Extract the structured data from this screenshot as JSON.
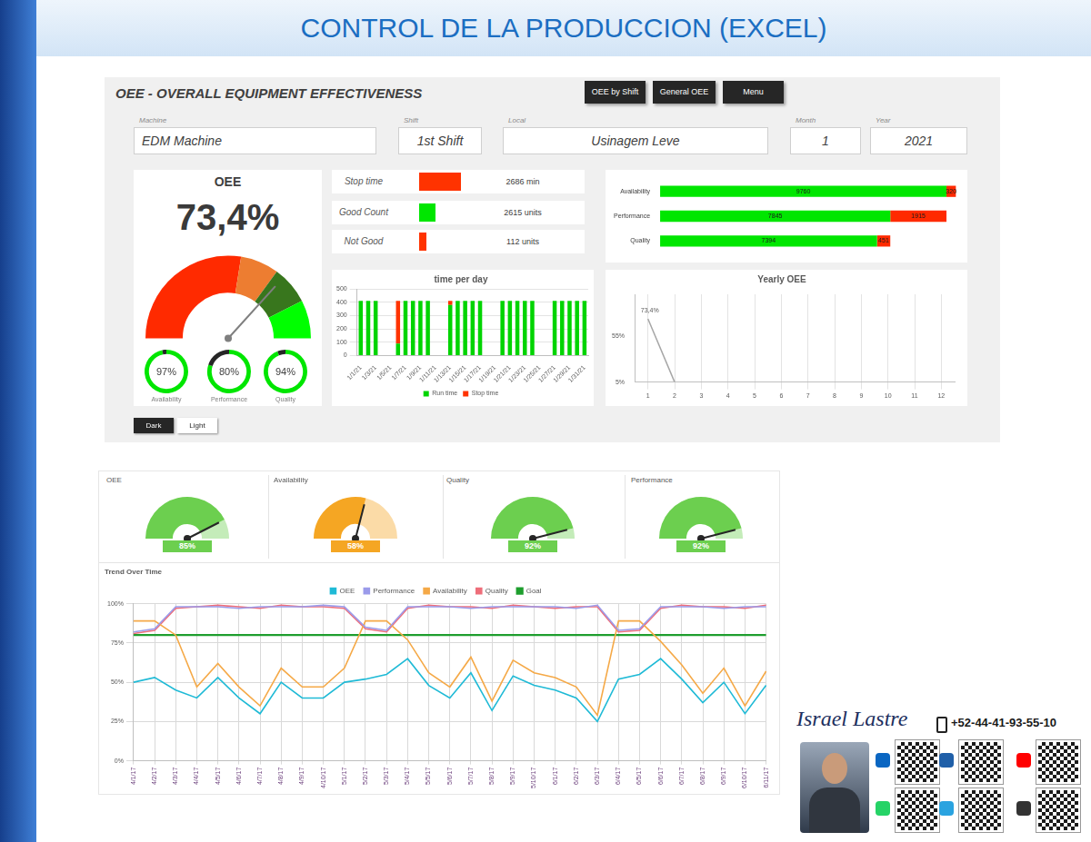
{
  "slide_title": "CONTROL DE LA PRODUCCION (EXCEL)",
  "dashboard1": {
    "title": "OEE - OVERALL EQUIPMENT EFFECTIVENESS",
    "buttons": [
      "OEE by Shift",
      "General OEE",
      "Menu"
    ],
    "fields": [
      {
        "label": "Machine",
        "value": "EDM Machine"
      },
      {
        "label": "Shift",
        "value": "1st Shift"
      },
      {
        "label": "Local",
        "value": "Usinagem Leve"
      },
      {
        "label": "Month",
        "value": "1"
      },
      {
        "label": "Year",
        "value": "2021"
      }
    ],
    "oee": {
      "title": "OEE",
      "value": 73.4,
      "value_label": "73,4%",
      "range": [
        0,
        100
      ],
      "bands": [
        55,
        15,
        15,
        15
      ],
      "band_colors": [
        "#ff2a00",
        "#ed7d31",
        "#38761d",
        "#00ff00"
      ],
      "components": [
        {
          "name": "Availability",
          "value": 97,
          "value_label": "97%"
        },
        {
          "name": "Performance",
          "value": 80,
          "value_label": "80%"
        },
        {
          "name": "Quality",
          "value": 94,
          "value_label": "94%"
        }
      ]
    },
    "kpis": [
      {
        "label": "Stop time",
        "value": 2686,
        "value_label": "2686 min",
        "color": "#ff3300"
      },
      {
        "label": "Good Count",
        "value": 2615,
        "value_label": "2615 units",
        "color": "#00e600"
      },
      {
        "label": "Not Good",
        "value": 112,
        "value_label": "112 units",
        "color": "#ff3300"
      }
    ],
    "theme_buttons": [
      "Dark",
      "Light"
    ]
  },
  "chart_data": [
    {
      "type": "bar",
      "orientation": "horizontal",
      "stacked": true,
      "categories": [
        "Availability",
        "Performance",
        "Quality"
      ],
      "series": [
        {
          "color": "#00e600",
          "values": [
            9760,
            7845,
            7394
          ]
        },
        {
          "color": "#ff2a00",
          "values": [
            320,
            1915,
            451
          ]
        }
      ],
      "xlim": [
        0,
        10100
      ],
      "data_labels": true,
      "tick_labels": "y",
      "grid": false
    },
    {
      "type": "bar",
      "stacked": true,
      "title": "time per day",
      "categories": [
        "1/1/21",
        null,
        "1/3/21",
        null,
        "1/5/21",
        null,
        "1/7/21",
        null,
        "1/9/21",
        null,
        "1/11/21",
        null,
        "1/13/21",
        null,
        "1/15/21",
        null,
        "1/17/21",
        null,
        "1/19/21",
        null,
        "1/21/21",
        null,
        "1/23/21",
        null,
        "1/25/21",
        null,
        "1/27/21",
        null,
        "1/29/21",
        null,
        "1/31/21"
      ],
      "series": [
        {
          "name": "Run time",
          "color": "#00d400",
          "values": [
            410,
            410,
            410,
            null,
            null,
            90,
            410,
            410,
            410,
            410,
            null,
            null,
            380,
            410,
            410,
            410,
            410,
            null,
            null,
            410,
            410,
            410,
            410,
            410,
            null,
            null,
            410,
            410,
            410,
            410,
            410
          ]
        },
        {
          "name": "Stop time",
          "color": "#ff3300",
          "values": [
            0,
            0,
            0,
            null,
            null,
            320,
            0,
            0,
            0,
            0,
            null,
            null,
            30,
            0,
            0,
            0,
            0,
            null,
            null,
            0,
            0,
            0,
            0,
            0,
            null,
            null,
            0,
            0,
            0,
            0,
            0
          ]
        }
      ],
      "ylim": [
        0,
        500
      ],
      "yticks": [
        0,
        100,
        200,
        300,
        400,
        500
      ],
      "grid": true,
      "legend": "bottom"
    },
    {
      "type": "line",
      "title": "Yearly OEE",
      "x": [
        1,
        2,
        3,
        4,
        5,
        6,
        7,
        8,
        9,
        10,
        11,
        12
      ],
      "series": [
        {
          "color": "#a6a6a6",
          "values": [
            73.4,
            5,
            null,
            null,
            null,
            null,
            null,
            null,
            null,
            null,
            null,
            null
          ],
          "value_labels": [
            "73,4%",
            null,
            null,
            null,
            null,
            null,
            null,
            null,
            null,
            null,
            null,
            null
          ]
        }
      ],
      "xlim": [
        0.5,
        12.5
      ],
      "xticks": [
        1,
        2,
        3,
        4,
        5,
        6,
        7,
        8,
        9,
        10,
        11,
        12
      ],
      "ylim": [
        5,
        100
      ],
      "yticks": [
        {
          "value": 5,
          "label": "5%"
        },
        {
          "value": 55,
          "label": "55%"
        }
      ],
      "grid": true,
      "data_labels": true
    },
    {
      "type": "line",
      "title": "Trend Over Time",
      "categories": [
        "4/1/17",
        "4/2/17",
        "4/3/17",
        "4/4/17",
        "4/5/17",
        "4/6/17",
        "4/7/17",
        "4/8/17",
        "4/9/17",
        "4/10/17",
        "5/1/17",
        "5/2/17",
        "5/3/17",
        "5/4/17",
        "5/5/17",
        "5/6/17",
        "5/7/17",
        "5/8/17",
        "5/9/17",
        "5/10/17",
        "6/1/17",
        "6/2/17",
        "6/3/17",
        "6/4/17",
        "6/5/17",
        "6/6/17",
        "6/7/17",
        "6/8/17",
        "6/9/17",
        "6/10/17",
        "6/11/17"
      ],
      "series": [
        {
          "name": "OEE",
          "color": "#1fbad6",
          "values": [
            50,
            53,
            45,
            40,
            53,
            40,
            30,
            50,
            40,
            40,
            50,
            52,
            55,
            65,
            48,
            40,
            56,
            32,
            54,
            48,
            45,
            40,
            25,
            52,
            55,
            65,
            52,
            37,
            50,
            30,
            48
          ]
        },
        {
          "name": "Performance",
          "color": "#9b9bea",
          "values": [
            82,
            84,
            98,
            98,
            98,
            97,
            98,
            98,
            98,
            99,
            98,
            85,
            83,
            98,
            98,
            98,
            97,
            98,
            98,
            98,
            98,
            97,
            99,
            83,
            84,
            98,
            98,
            98,
            97,
            98,
            98
          ]
        },
        {
          "name": "Availability",
          "color": "#f5a947",
          "values": [
            89,
            89,
            80,
            47,
            62,
            47,
            35,
            59,
            47,
            47,
            59,
            89,
            89,
            77,
            56,
            47,
            66,
            38,
            64,
            56,
            53,
            47,
            29,
            89,
            89,
            76,
            61,
            43,
            59,
            35,
            57
          ]
        },
        {
          "name": "Quality",
          "color": "#ee6e7a",
          "values": [
            81,
            83,
            97,
            98,
            99,
            98,
            97,
            99,
            98,
            98,
            97,
            84,
            82,
            97,
            99,
            98,
            98,
            97,
            99,
            98,
            97,
            98,
            98,
            82,
            83,
            97,
            99,
            98,
            98,
            97,
            99
          ]
        },
        {
          "name": "Goal",
          "color": "#1e9e2e",
          "values": [
            80,
            80,
            80,
            80,
            80,
            80,
            80,
            80,
            80,
            80,
            80,
            80,
            80,
            80,
            80,
            80,
            80,
            80,
            80,
            80,
            80,
            80,
            80,
            80,
            80,
            80,
            80,
            80,
            80,
            80,
            80
          ]
        }
      ],
      "ylim": [
        0,
        100
      ],
      "yticks": [
        {
          "value": 0,
          "label": "0%"
        },
        {
          "value": 25,
          "label": "25%"
        },
        {
          "value": 50,
          "label": "50%"
        },
        {
          "value": 75,
          "label": "75%"
        },
        {
          "value": 100,
          "label": "100%"
        }
      ],
      "grid": true,
      "legend": "top"
    }
  ],
  "dashboard2": {
    "range": [
      0,
      100
    ],
    "gauges": [
      {
        "title": "OEE",
        "value": 85,
        "value_label": "85%",
        "color": "#6ccf4f"
      },
      {
        "title": "Availability",
        "value": 58,
        "value_label": "58%",
        "color": "#f5a623"
      },
      {
        "title": "Quality",
        "value": 92,
        "value_label": "92%",
        "color": "#6ccf4f"
      },
      {
        "title": "Performance",
        "value": 92,
        "value_label": "92%",
        "color": "#6ccf4f"
      }
    ]
  },
  "contact": {
    "name": "Israel Lastre",
    "phone": "+52-44-41-93-55-10"
  }
}
